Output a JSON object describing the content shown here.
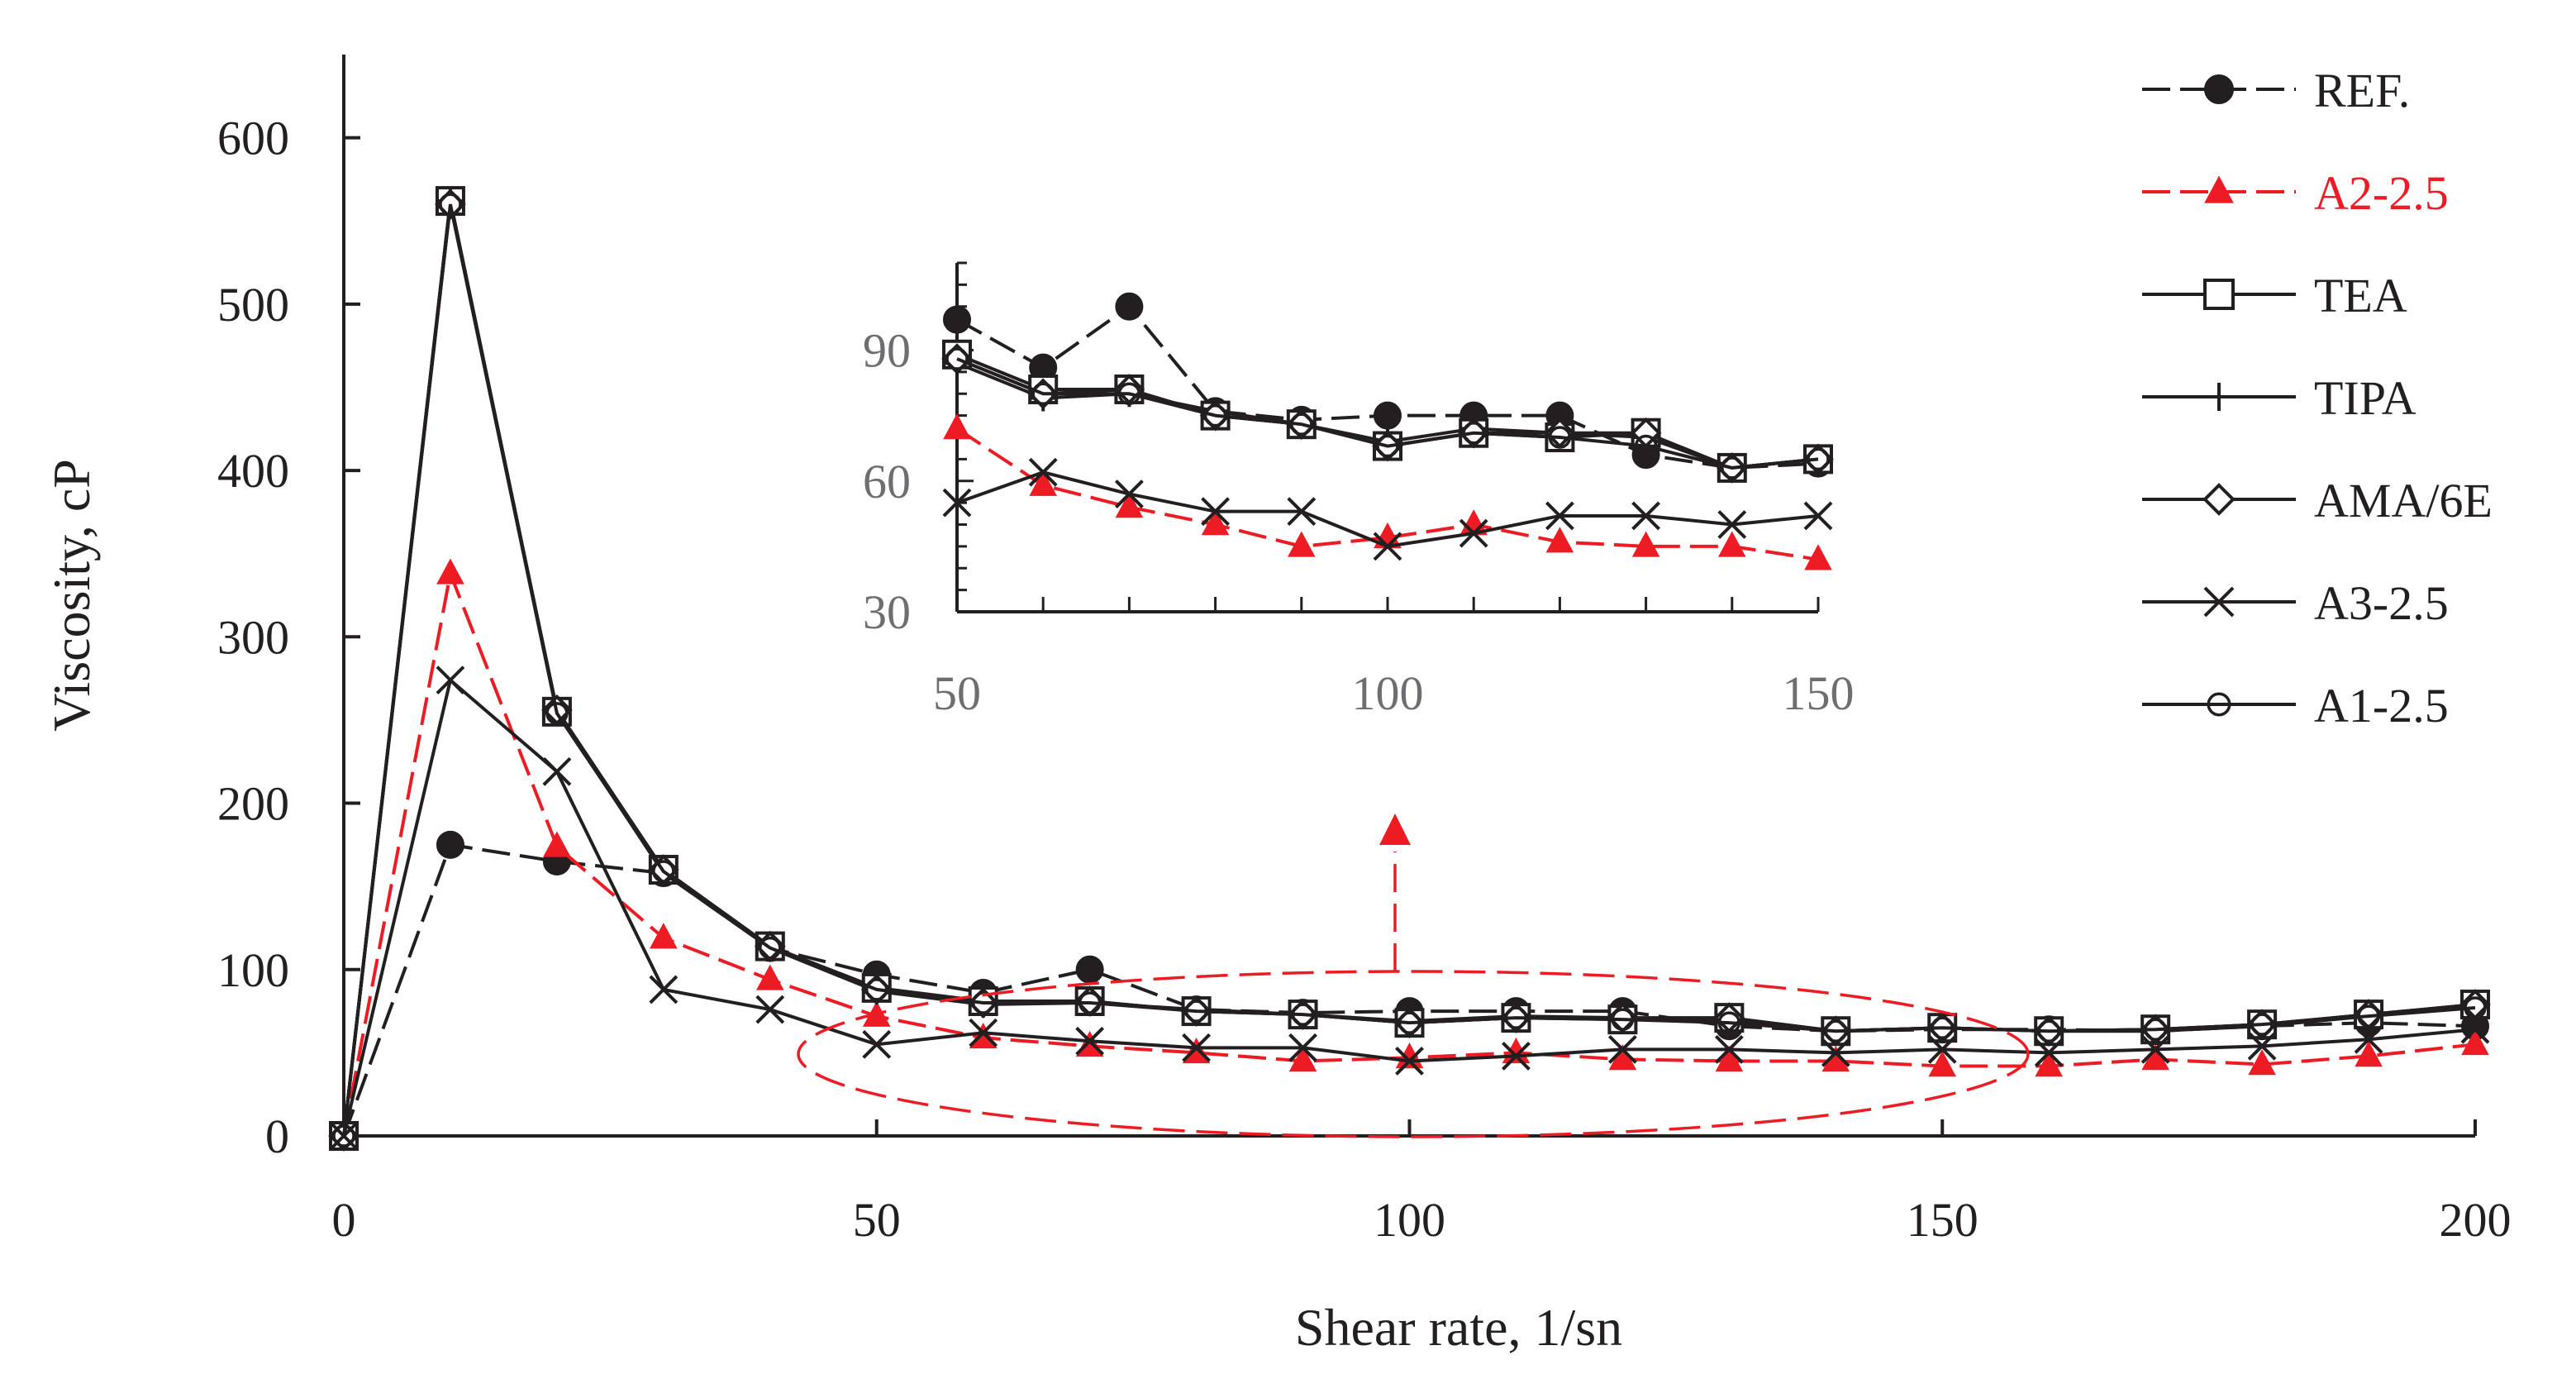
{
  "chart_data": {
    "type": "line",
    "xlabel": "Shear rate, 1/sn",
    "ylabel": "Viscosity, cP",
    "xlim": [
      0,
      200
    ],
    "ylim": [
      0,
      650
    ],
    "xticks": [
      "0",
      "50",
      "100",
      "150",
      "200"
    ],
    "yticks": [
      "0",
      "100",
      "200",
      "300",
      "400",
      "500",
      "600"
    ],
    "series": [
      {
        "name": "REF.",
        "color": "#231f20",
        "dash": "dashed",
        "marker": "filled-circle",
        "x": [
          0,
          10,
          20,
          30,
          40,
          50,
          60,
          70,
          80,
          90,
          100,
          110,
          120,
          130,
          140,
          150,
          160,
          170,
          180,
          190,
          200
        ],
        "y": [
          0,
          175,
          165,
          158,
          113,
          97,
          86,
          100,
          76,
          74,
          75,
          75,
          75,
          66,
          63,
          64,
          64,
          63,
          66,
          68,
          66
        ]
      },
      {
        "name": "A2-2.5",
        "color": "#ed1c24",
        "dash": "dashed",
        "marker": "filled-triangle",
        "x": [
          0,
          10,
          20,
          30,
          40,
          50,
          60,
          70,
          80,
          90,
          100,
          110,
          120,
          130,
          140,
          150,
          160,
          170,
          180,
          190,
          200
        ],
        "y": [
          0,
          338,
          174,
          119,
          94,
          72,
          59,
          54,
          50,
          45,
          47,
          50,
          46,
          45,
          45,
          42,
          42,
          46,
          43,
          48,
          55
        ]
      },
      {
        "name": "TEA",
        "color": "#231f20",
        "dash": "solid",
        "marker": "open-square",
        "x": [
          0,
          10,
          20,
          30,
          40,
          50,
          60,
          70,
          80,
          90,
          100,
          110,
          120,
          130,
          140,
          150,
          160,
          170,
          180,
          190,
          200
        ],
        "y": [
          0,
          562,
          255,
          160,
          114,
          89,
          81,
          81,
          75,
          73,
          68,
          71,
          70,
          71,
          63,
          65,
          63,
          64,
          67,
          73,
          79
        ]
      },
      {
        "name": "TIPA",
        "color": "#231f20",
        "dash": "solid",
        "marker": "plus",
        "x": [
          0,
          10,
          20,
          30,
          40,
          50,
          60,
          70,
          80,
          90,
          100,
          110,
          120,
          130,
          140,
          150,
          160,
          170,
          180,
          190,
          200
        ],
        "y": [
          0,
          562,
          255,
          158,
          113,
          87,
          79,
          80,
          76,
          73,
          69,
          72,
          71,
          70,
          63,
          65,
          63,
          63,
          66,
          72,
          78
        ]
      },
      {
        "name": "AMA/6E",
        "color": "#231f20",
        "dash": "solid",
        "marker": "open-diamond",
        "x": [
          0,
          10,
          20,
          30,
          40,
          50,
          60,
          70,
          80,
          90,
          100,
          110,
          120,
          130,
          140,
          150,
          160,
          170,
          180,
          190,
          200
        ],
        "y": [
          0,
          560,
          256,
          160,
          114,
          88,
          80,
          81,
          75,
          73,
          68,
          71,
          71,
          71,
          63,
          65,
          63,
          64,
          67,
          73,
          79
        ]
      },
      {
        "name": "A3-2.5",
        "color": "#231f20",
        "dash": "solid",
        "marker": "cross",
        "x": [
          0,
          10,
          20,
          30,
          40,
          50,
          60,
          70,
          80,
          90,
          100,
          110,
          120,
          130,
          140,
          150,
          160,
          170,
          180,
          190,
          200
        ],
        "y": [
          0,
          274,
          219,
          88,
          76,
          55,
          62,
          57,
          53,
          53,
          45,
          48,
          52,
          52,
          50,
          52,
          50,
          52,
          54,
          58,
          64
        ]
      },
      {
        "name": "A1-2.5",
        "color": "#231f20",
        "dash": "solid",
        "marker": "open-circle",
        "x": [
          0,
          10,
          20,
          30,
          40,
          50,
          60,
          70,
          80,
          90,
          100,
          110,
          120,
          130,
          140,
          150,
          160,
          170,
          180,
          190,
          200
        ],
        "y": [
          0,
          560,
          254,
          159,
          113,
          88,
          80,
          80,
          75,
          73,
          68,
          71,
          70,
          68,
          63,
          65,
          63,
          64,
          67,
          72,
          77
        ]
      }
    ],
    "inset": {
      "xlim": [
        50,
        150
      ],
      "ylim": [
        30,
        110
      ],
      "xticks": [
        "50",
        "100",
        "150"
      ],
      "yticks": [
        "30",
        "60",
        "90"
      ]
    },
    "annotation": "dashed red ellipse highlighting shear rate 50–150 region with arrow pointing up to inset"
  }
}
